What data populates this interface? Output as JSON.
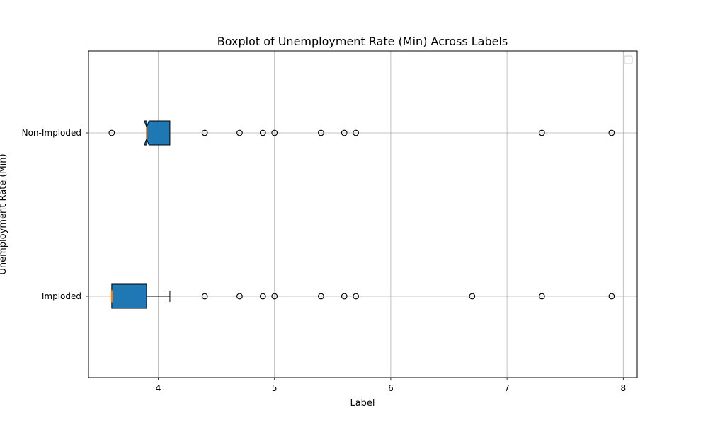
{
  "chart_data": {
    "type": "boxplot",
    "orientation": "horizontal",
    "notched": true,
    "title": "Boxplot of Unemployment Rate (Min) Across Labels",
    "xlabel": "Label",
    "ylabel": "Unemployment Rate (Min)",
    "xlim": [
      3.4,
      8.12
    ],
    "xticks": [
      4,
      5,
      6,
      7,
      8
    ],
    "xtick_labels": [
      "4",
      "5",
      "6",
      "7",
      "8"
    ],
    "grid": true,
    "legend": {
      "placement": "top-right",
      "entries": []
    },
    "categories": [
      "Imploded",
      "Non-Imploded"
    ],
    "series": [
      {
        "name": "Imploded",
        "q1": 3.6,
        "median": 3.6,
        "q3": 3.9,
        "whisker_low": 3.6,
        "whisker_high": 4.1,
        "notch_low": 3.6,
        "notch_high": 3.6,
        "outliers": [
          4.4,
          4.7,
          4.9,
          5.0,
          5.4,
          5.6,
          5.7,
          6.7,
          7.3,
          7.9
        ]
      },
      {
        "name": "Non-Imploded",
        "q1": 3.9,
        "median": 3.9,
        "q3": 4.1,
        "whisker_low": 3.9,
        "whisker_high": 4.1,
        "notch_low": 3.88,
        "notch_high": 3.92,
        "outliers": [
          3.6,
          4.4,
          4.7,
          4.9,
          5.0,
          5.4,
          5.6,
          5.7,
          7.3,
          7.9
        ]
      }
    ],
    "colors": {
      "box_fill": "#1f77b4",
      "median": "#ff7f0e",
      "grid": "#b0b0b0",
      "edge": "#000000"
    }
  }
}
